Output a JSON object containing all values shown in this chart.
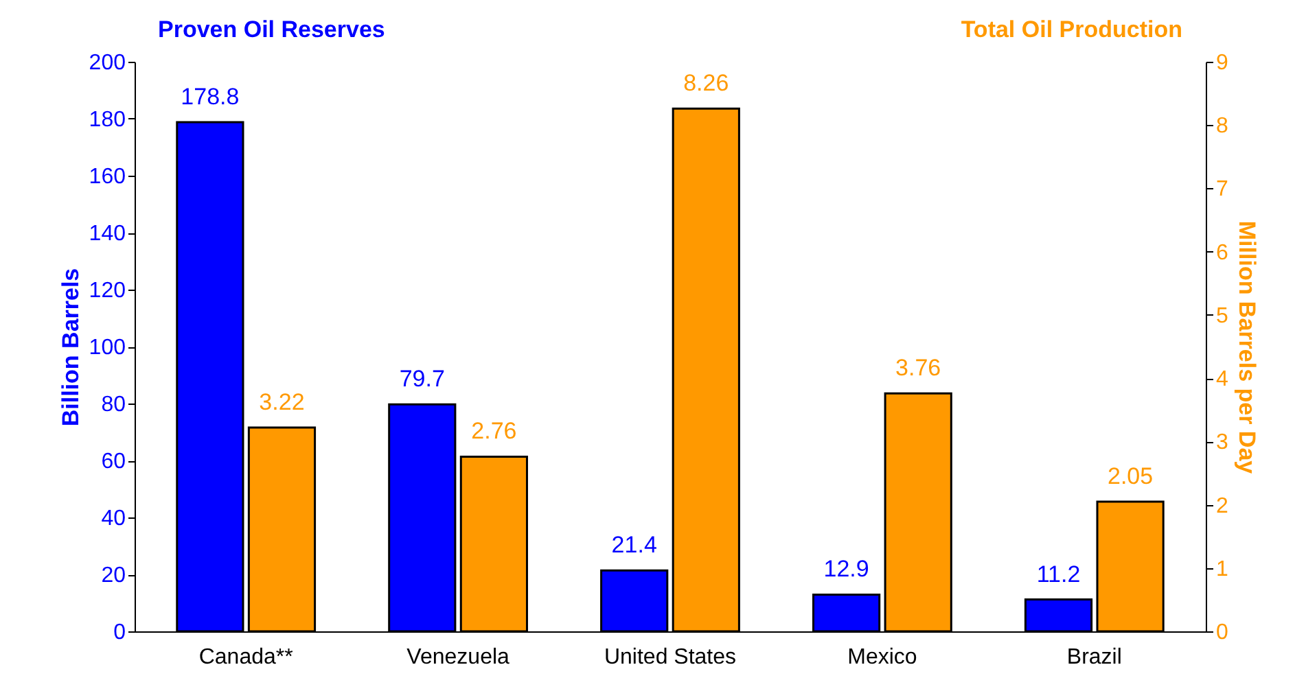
{
  "chart_data": {
    "type": "bar",
    "categories": [
      "Canada**",
      "Venezuela",
      "United States",
      "Mexico",
      "Brazil"
    ],
    "series": [
      {
        "name": "Proven Oil Reserves",
        "color": "#0000ff",
        "values": [
          178.8,
          79.7,
          21.4,
          12.9,
          11.2
        ]
      },
      {
        "name": "Total Oil Production",
        "color": "#ff9900",
        "axis": "y2",
        "values": [
          3.22,
          2.76,
          8.26,
          3.76,
          2.05
        ]
      }
    ],
    "ylabel": "Billion Barrels",
    "y2label": "Million Barrels per Day",
    "ylim": [
      0,
      200
    ],
    "yticks": [
      0,
      20,
      40,
      60,
      80,
      100,
      120,
      140,
      160,
      180,
      200
    ],
    "y2lim": [
      0,
      9
    ],
    "y2ticks": [
      0,
      1,
      2,
      3,
      4,
      5,
      6,
      7,
      8,
      9
    ],
    "data_labels": true,
    "grid": false
  }
}
